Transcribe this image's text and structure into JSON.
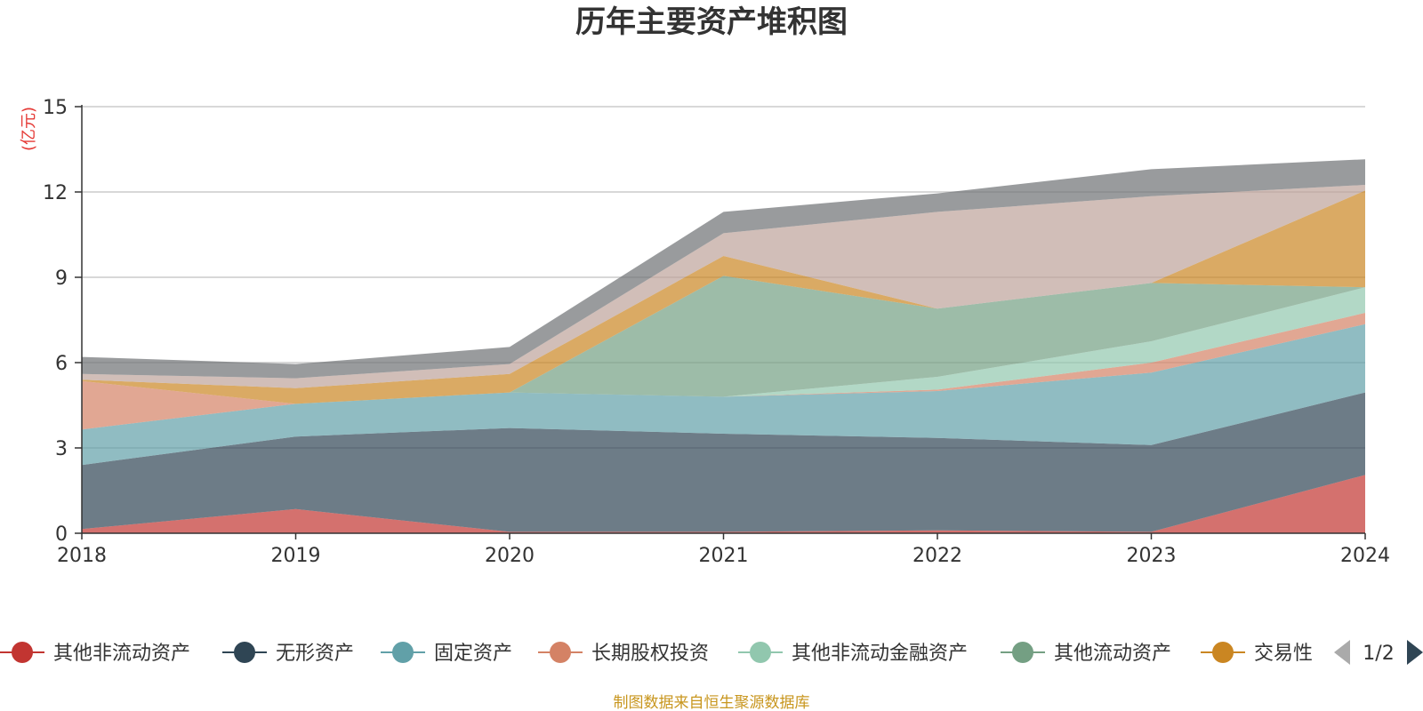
{
  "chart_data": {
    "type": "area",
    "stacked": true,
    "title": "历年主要资产堆积图",
    "unit_label": "(亿元)",
    "x": [
      "2018",
      "2019",
      "2020",
      "2021",
      "2022",
      "2023",
      "2024"
    ],
    "ylim": [
      0,
      15
    ],
    "yticks": [
      "0",
      "3",
      "6",
      "9",
      "12",
      "15"
    ],
    "grid": true,
    "legend_position": "bottom",
    "series": [
      {
        "name": "其他非流动资产",
        "color": "#c23531",
        "values": [
          0.15,
          0.85,
          0.05,
          0.05,
          0.1,
          0.05,
          2.05
        ]
      },
      {
        "name": "无形资产",
        "color": "#2f4554",
        "values": [
          2.25,
          2.55,
          3.65,
          3.45,
          3.25,
          3.05,
          2.9
        ]
      },
      {
        "name": "固定资产",
        "color": "#61a0a8",
        "values": [
          1.25,
          1.15,
          1.25,
          1.3,
          1.65,
          2.55,
          2.4
        ]
      },
      {
        "name": "长期股权投资",
        "color": "#d48265",
        "values": [
          1.7,
          0.0,
          0.0,
          0.0,
          0.05,
          0.35,
          0.4
        ]
      },
      {
        "name": "其他非流动金融资产",
        "color": "#91c7ae",
        "values": [
          0.0,
          0.0,
          0.0,
          0.0,
          0.45,
          0.75,
          0.9
        ]
      },
      {
        "name": "其他流动资产",
        "color": "#749f83",
        "values": [
          0.0,
          0.0,
          0.0,
          4.25,
          2.4,
          2.05,
          0.0
        ]
      },
      {
        "name": "交易性",
        "color": "#ca8622",
        "values": [
          0.05,
          0.55,
          0.65,
          0.7,
          0.0,
          0.0,
          3.4
        ]
      },
      {
        "name": "",
        "color": "#bda29a",
        "values": [
          0.2,
          0.35,
          0.35,
          0.8,
          3.4,
          3.05,
          0.2
        ]
      },
      {
        "name": "",
        "color": "#6e7074",
        "values": [
          0.6,
          0.5,
          0.6,
          0.75,
          0.65,
          0.95,
          0.9
        ]
      }
    ]
  },
  "legend": {
    "page_indicator": "1/2",
    "prev_icon": "triangle-left-icon",
    "next_icon": "triangle-right-icon"
  },
  "footer": {
    "source_text": "制图数据来自恒生聚源数据库"
  }
}
